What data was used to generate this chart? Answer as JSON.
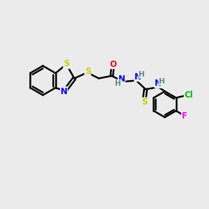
{
  "background_color": "#ebebeb",
  "bond_color": "#000000",
  "bond_width": 1.8,
  "atom_colors": {
    "S": "#cccc00",
    "N": "#0000ff",
    "O": "#ff0000",
    "Cl": "#00bb00",
    "F": "#ff00ff",
    "H": "#558888",
    "C": "#000000"
  },
  "font_size": 8.5,
  "fig_size": [
    3.0,
    3.0
  ],
  "dpi": 100
}
